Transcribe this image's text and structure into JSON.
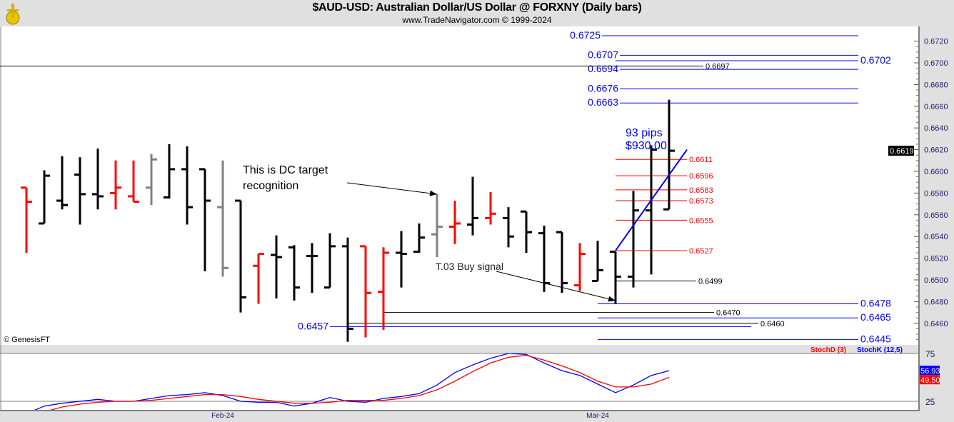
{
  "header": {
    "title": "$AUD-USD:  Australian Dollar/US Dollar @ FORXNY  (Daily bars)",
    "subtitle": "www.TradeNavigator.com © 1999-2024"
  },
  "copyright": "© GenesisFT",
  "colors": {
    "up": "#000000",
    "down": "#ff0000",
    "neutral": "#808080",
    "target": "#0000ff",
    "retrace": "#ff0000",
    "stochK": "#0000ff",
    "stochD": "#ff0000"
  },
  "chart_data": [
    {
      "type": "ohlc",
      "title": "$AUD-USD Daily bars",
      "ylim": [
        0.644,
        0.6735
      ],
      "yticks": [
        "0.6720",
        "0.6700",
        "0.6680",
        "0.6660",
        "0.6640",
        "0.6620",
        "0.6600",
        "0.6580",
        "0.6560",
        "0.6540",
        "0.6520",
        "0.6500",
        "0.6480",
        "0.6460"
      ],
      "xticks": [
        {
          "label": "Feb-24",
          "bar": 11
        },
        {
          "label": "Mar-24",
          "bar": 32
        }
      ],
      "last_price": "0.6619",
      "bars": [
        {
          "o": 0.6585,
          "h": 0.6585,
          "l": 0.6525,
          "c": 0.6572,
          "col": "down"
        },
        {
          "o": 0.6552,
          "h": 0.6601,
          "l": 0.6552,
          "c": 0.6596,
          "col": "up"
        },
        {
          "o": 0.6573,
          "h": 0.6614,
          "l": 0.6565,
          "c": 0.6569,
          "col": "up"
        },
        {
          "o": 0.6597,
          "h": 0.6613,
          "l": 0.6551,
          "c": 0.6579,
          "col": "up"
        },
        {
          "o": 0.6579,
          "h": 0.6621,
          "l": 0.6565,
          "c": 0.6577,
          "col": "up"
        },
        {
          "o": 0.658,
          "h": 0.661,
          "l": 0.6565,
          "c": 0.6585,
          "col": "down"
        },
        {
          "o": 0.6577,
          "h": 0.661,
          "l": 0.6572,
          "c": 0.6572,
          "col": "down"
        },
        {
          "o": 0.6585,
          "h": 0.6616,
          "l": 0.6569,
          "c": 0.6611,
          "col": "neutral"
        },
        {
          "o": 0.6576,
          "h": 0.6625,
          "l": 0.6575,
          "c": 0.6602,
          "col": "up"
        },
        {
          "o": 0.6602,
          "h": 0.6623,
          "l": 0.6551,
          "c": 0.6567,
          "col": "up"
        },
        {
          "o": 0.6602,
          "h": 0.6602,
          "l": 0.6508,
          "c": 0.6573,
          "col": "up"
        },
        {
          "o": 0.6567,
          "h": 0.661,
          "l": 0.6503,
          "c": 0.6511,
          "col": "neutral"
        },
        {
          "o": 0.6573,
          "h": 0.6573,
          "l": 0.647,
          "c": 0.6484,
          "col": "up"
        },
        {
          "o": 0.6513,
          "h": 0.6524,
          "l": 0.6478,
          "c": 0.6524,
          "col": "down"
        },
        {
          "o": 0.6523,
          "h": 0.6541,
          "l": 0.6483,
          "c": 0.6521,
          "col": "up"
        },
        {
          "o": 0.653,
          "h": 0.6532,
          "l": 0.6481,
          "c": 0.6493,
          "col": "up"
        },
        {
          "o": 0.6522,
          "h": 0.6534,
          "l": 0.6488,
          "c": 0.6522,
          "col": "up"
        },
        {
          "o": 0.6493,
          "h": 0.6543,
          "l": 0.6493,
          "c": 0.6531,
          "col": "up"
        },
        {
          "o": 0.6531,
          "h": 0.6539,
          "l": 0.6443,
          "c": 0.6455,
          "col": "up"
        },
        {
          "o": 0.6531,
          "h": 0.6531,
          "l": 0.6447,
          "c": 0.6488,
          "col": "down"
        },
        {
          "o": 0.6489,
          "h": 0.653,
          "l": 0.6454,
          "c": 0.6525,
          "col": "down"
        },
        {
          "o": 0.6525,
          "h": 0.6545,
          "l": 0.6493,
          "c": 0.6524,
          "col": "up"
        },
        {
          "o": 0.6526,
          "h": 0.6552,
          "l": 0.6525,
          "c": 0.6539,
          "col": "up"
        },
        {
          "o": 0.6542,
          "h": 0.6579,
          "l": 0.6521,
          "c": 0.6549,
          "col": "neutral"
        },
        {
          "o": 0.6549,
          "h": 0.6573,
          "l": 0.6533,
          "c": 0.6552,
          "col": "down"
        },
        {
          "o": 0.6551,
          "h": 0.6595,
          "l": 0.6541,
          "c": 0.6557,
          "col": "up"
        },
        {
          "o": 0.6557,
          "h": 0.6581,
          "l": 0.6551,
          "c": 0.6561,
          "col": "down"
        },
        {
          "o": 0.6557,
          "h": 0.6567,
          "l": 0.653,
          "c": 0.654,
          "col": "up"
        },
        {
          "o": 0.6563,
          "h": 0.6563,
          "l": 0.6525,
          "c": 0.6544,
          "col": "up"
        },
        {
          "o": 0.6543,
          "h": 0.655,
          "l": 0.6489,
          "c": 0.6497,
          "col": "up"
        },
        {
          "o": 0.6544,
          "h": 0.6544,
          "l": 0.6488,
          "c": 0.6497,
          "col": "up"
        },
        {
          "o": 0.6495,
          "h": 0.6534,
          "l": 0.649,
          "c": 0.6524,
          "col": "down"
        },
        {
          "o": 0.6499,
          "h": 0.6536,
          "l": 0.6499,
          "c": 0.6509,
          "col": "up"
        },
        {
          "o": 0.6526,
          "h": 0.6526,
          "l": 0.6478,
          "c": 0.6503,
          "col": "up"
        },
        {
          "o": 0.6503,
          "h": 0.6582,
          "l": 0.6493,
          "c": 0.6564,
          "col": "up"
        },
        {
          "o": 0.6564,
          "h": 0.6624,
          "l": 0.6505,
          "c": 0.662,
          "col": "up"
        },
        {
          "o": 0.6565,
          "h": 0.6666,
          "l": 0.6565,
          "c": 0.6619,
          "col": "up"
        }
      ],
      "levels": [
        {
          "price": 0.6725,
          "label": "0.6725",
          "color": "target",
          "from_bar": 32,
          "to_bar": 47,
          "label_side": "left"
        },
        {
          "price": 0.6707,
          "label": "0.6707",
          "color": "target",
          "from_bar": 33,
          "to_bar": 47,
          "label_side": "left"
        },
        {
          "price": 0.6702,
          "label": "0.6702",
          "color": "target",
          "from_bar": 33,
          "to_bar": 47,
          "label_side": "right"
        },
        {
          "price": 0.6694,
          "label": "0.6694",
          "color": "target",
          "from_bar": 33,
          "to_bar": 47,
          "label_side": "left"
        },
        {
          "price": 0.6676,
          "label": "0.6676",
          "color": "target",
          "from_bar": 33,
          "to_bar": 47,
          "label_side": "left"
        },
        {
          "price": 0.6663,
          "label": "0.6663",
          "color": "target",
          "from_bar": 33,
          "to_bar": 47,
          "label_side": "left"
        },
        {
          "price": 0.6478,
          "label": "0.6478",
          "color": "target",
          "from_bar": 32,
          "to_bar": 47,
          "label_side": "right"
        },
        {
          "price": 0.6465,
          "label": "0.6465",
          "color": "target",
          "from_bar": 32,
          "to_bar": 47,
          "label_side": "right"
        },
        {
          "price": 0.6445,
          "label": "0.6445",
          "color": "target",
          "from_bar": 32,
          "to_bar": 47,
          "label_side": "right"
        },
        {
          "price": 0.6457,
          "label": "0.6457",
          "color": "target",
          "from_bar": 17,
          "to_bar": 41,
          "label_side": "left"
        },
        {
          "price": 0.6697,
          "label": "0.6697",
          "color": "black",
          "from_bar": -2,
          "to_bar": 37,
          "label_side": "right"
        },
        {
          "price": 0.647,
          "label": "0.6470",
          "color": "black",
          "from_bar": 20,
          "to_bar": 38,
          "label_side": "right"
        },
        {
          "price": 0.646,
          "label": "0.6460",
          "color": "black",
          "from_bar": 18,
          "to_bar": 41,
          "label_side": "right"
        },
        {
          "price": 0.6499,
          "label": "0.6499",
          "color": "black",
          "from_bar": 33,
          "to_bar": 37,
          "label_side": "right"
        },
        {
          "price": 0.6611,
          "label": "0.6611",
          "color": "retrace",
          "from_bar": 33,
          "to_bar": 37,
          "label_side": "right"
        },
        {
          "price": 0.6596,
          "label": "0.6596",
          "color": "retrace",
          "from_bar": 33,
          "to_bar": 37,
          "label_side": "right"
        },
        {
          "price": 0.6583,
          "label": "0.6583",
          "color": "retrace",
          "from_bar": 33,
          "to_bar": 37,
          "label_side": "right"
        },
        {
          "price": 0.6573,
          "label": "0.6573",
          "color": "retrace",
          "from_bar": 33,
          "to_bar": 37,
          "label_side": "right"
        },
        {
          "price": 0.6555,
          "label": "0.6555",
          "color": "retrace",
          "from_bar": 33,
          "to_bar": 37,
          "label_side": "right"
        },
        {
          "price": 0.6527,
          "label": "0.6527",
          "color": "retrace",
          "from_bar": 33,
          "to_bar": 37,
          "label_side": "right"
        }
      ],
      "trend_line": {
        "from": {
          "bar": 33,
          "price": 0.6527
        },
        "to": {
          "bar": 36,
          "price": 0.662
        }
      },
      "annotations": {
        "dc_target": {
          "line1": "This is DC target",
          "line2": "recognition",
          "points_to_bar": 23
        },
        "buy_signal": {
          "text": "T.03 Buy signal",
          "points_to_bar": 33
        },
        "gain": {
          "pips": "93 pips",
          "dollars": "$930.00"
        }
      }
    },
    {
      "type": "line",
      "title": "Stochastic",
      "legend": [
        {
          "name": "StochD (3)",
          "color": "#ff0000"
        },
        {
          "name": "StochK (12,5)",
          "color": "#0000ff"
        }
      ],
      "ylim": [
        17,
        78
      ],
      "yticks": [
        "75",
        "25"
      ],
      "last_values": {
        "K": "56.93",
        "D": "49.50"
      },
      "series": [
        {
          "name": "StochK (12,5)",
          "values": [
            12,
            20,
            23,
            25,
            27,
            25,
            25,
            28,
            31,
            32,
            34,
            31,
            25,
            24,
            24,
            20,
            23,
            29,
            25,
            24,
            28,
            30,
            33,
            42,
            55,
            63,
            70,
            75,
            74,
            65,
            57,
            52,
            43,
            34,
            42,
            52,
            57
          ]
        },
        {
          "name": "StochD (3)",
          "values": [
            null,
            14,
            19,
            22,
            24,
            25,
            25,
            26,
            28,
            30,
            32,
            32,
            30,
            27,
            25,
            23,
            23,
            24,
            26,
            26,
            26,
            28,
            31,
            37,
            46,
            56,
            65,
            71,
            73,
            68,
            62,
            55,
            46,
            40,
            40,
            43,
            50
          ]
        }
      ]
    }
  ]
}
